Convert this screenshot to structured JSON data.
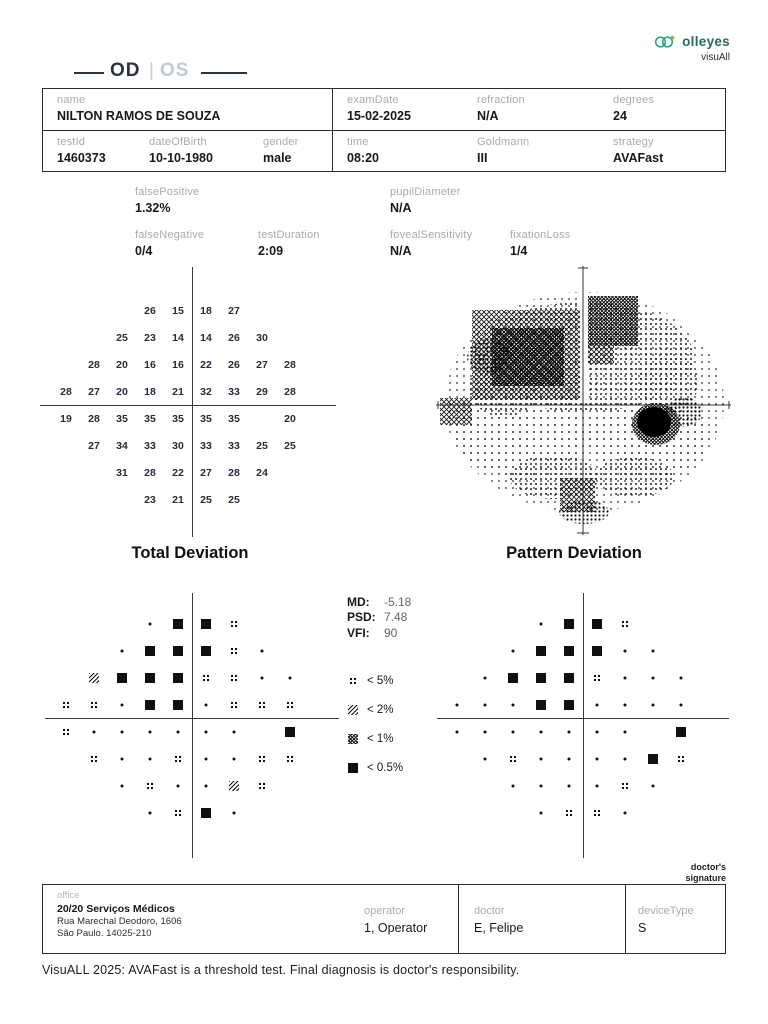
{
  "logo": {
    "brand": "olleyes",
    "product": "visuAll"
  },
  "header": {
    "od": "OD",
    "sep": "|",
    "os": "OS"
  },
  "patient": {
    "name_label": "name",
    "name": "NILTON RAMOS DE SOUZA",
    "exam_date_label": "examDate",
    "exam_date": "15-02-2025",
    "refraction_label": "refraction",
    "refraction": "N/A",
    "degrees_label": "degrees",
    "degrees": "24",
    "test_id_label": "testId",
    "test_id": "1460373",
    "dob_label": "dateOfBirth",
    "dob": "10-10-1980",
    "gender_label": "gender",
    "gender": "male",
    "time_label": "time",
    "time": "08:20",
    "goldmann_label": "Goldmann",
    "goldmann": "III",
    "strategy_label": "strategy",
    "strategy": "AVAFast"
  },
  "metrics": {
    "false_positive_label": "falsePositive",
    "false_positive": "1.32%",
    "pupil_diameter_label": "pupilDiameter",
    "pupil_diameter": "N/A",
    "false_negative_label": "falseNegative",
    "false_negative": "0/4",
    "test_duration_label": "testDuration",
    "test_duration": "2:09",
    "foveal_sensitivity_label": "fovealSensitivity",
    "foveal_sensitivity": "N/A",
    "fixation_loss_label": "fixationLoss",
    "fixation_loss": "1/4"
  },
  "sections": {
    "total_deviation": "Total Deviation",
    "pattern_deviation": "Pattern Deviation"
  },
  "indices": {
    "md_label": "MD:",
    "md": "-5.18",
    "psd_label": "PSD:",
    "psd": "7.48",
    "vfi_label": "VFI:",
    "vfi": "90"
  },
  "legend": [
    {
      "key": "q",
      "label": "< 5%"
    },
    {
      "key": "h2",
      "label": "< 2%"
    },
    {
      "key": "h1",
      "label": "< 1%"
    },
    {
      "key": "b",
      "label": "< 0.5%"
    }
  ],
  "sensitivity_grid": {
    "rows": [
      {
        "y": 21,
        "cells": [
          {
            "x": -9,
            "v": 26
          },
          {
            "x": -3,
            "v": 15
          },
          {
            "x": 3,
            "v": 18
          },
          {
            "x": 9,
            "v": 27
          }
        ]
      },
      {
        "y": 15,
        "cells": [
          {
            "x": -15,
            "v": 25
          },
          {
            "x": -9,
            "v": 23
          },
          {
            "x": -3,
            "v": 14
          },
          {
            "x": 3,
            "v": 14
          },
          {
            "x": 9,
            "v": 26
          },
          {
            "x": 15,
            "v": 30
          }
        ]
      },
      {
        "y": 9,
        "cells": [
          {
            "x": -21,
            "v": 28
          },
          {
            "x": -15,
            "v": 20
          },
          {
            "x": -9,
            "v": 16
          },
          {
            "x": -3,
            "v": 16
          },
          {
            "x": 3,
            "v": 22
          },
          {
            "x": 9,
            "v": 26
          },
          {
            "x": 15,
            "v": 27
          },
          {
            "x": 21,
            "v": 28
          }
        ]
      },
      {
        "y": 3,
        "cells": [
          {
            "x": -27,
            "v": 28
          },
          {
            "x": -21,
            "v": 27
          },
          {
            "x": -15,
            "v": 20
          },
          {
            "x": -9,
            "v": 18
          },
          {
            "x": -3,
            "v": 21
          },
          {
            "x": 3,
            "v": 32
          },
          {
            "x": 9,
            "v": 33
          },
          {
            "x": 15,
            "v": 29
          },
          {
            "x": 21,
            "v": 28
          }
        ]
      },
      {
        "y": -3,
        "cells": [
          {
            "x": -27,
            "v": 19
          },
          {
            "x": -21,
            "v": 28
          },
          {
            "x": -15,
            "v": 35
          },
          {
            "x": -9,
            "v": 35
          },
          {
            "x": -3,
            "v": 35
          },
          {
            "x": 3,
            "v": 35
          },
          {
            "x": 9,
            "v": 35
          },
          {
            "x": 21,
            "v": 20
          }
        ]
      },
      {
        "y": -9,
        "cells": [
          {
            "x": -21,
            "v": 27
          },
          {
            "x": -15,
            "v": 34
          },
          {
            "x": -9,
            "v": 33
          },
          {
            "x": -3,
            "v": 30
          },
          {
            "x": 3,
            "v": 33
          },
          {
            "x": 9,
            "v": 33
          },
          {
            "x": 15,
            "v": 25
          },
          {
            "x": 21,
            "v": 25
          }
        ]
      },
      {
        "y": -15,
        "cells": [
          {
            "x": -15,
            "v": 31
          },
          {
            "x": -9,
            "v": 28
          },
          {
            "x": -3,
            "v": 22
          },
          {
            "x": 3,
            "v": 27
          },
          {
            "x": 9,
            "v": 28
          },
          {
            "x": 15,
            "v": 24
          }
        ]
      },
      {
        "y": -21,
        "cells": [
          {
            "x": -9,
            "v": 23
          },
          {
            "x": -3,
            "v": 21
          },
          {
            "x": 3,
            "v": 25
          },
          {
            "x": 9,
            "v": 25
          }
        ]
      }
    ]
  },
  "total_deviation_grid": {
    "rows": [
      {
        "y": 21,
        "cells": [
          {
            "x": -9,
            "s": "dot"
          },
          {
            "x": -3,
            "s": "b"
          },
          {
            "x": 3,
            "s": "b"
          },
          {
            "x": 9,
            "s": "q"
          }
        ]
      },
      {
        "y": 15,
        "cells": [
          {
            "x": -15,
            "s": "dot"
          },
          {
            "x": -9,
            "s": "b"
          },
          {
            "x": -3,
            "s": "b"
          },
          {
            "x": 3,
            "s": "b"
          },
          {
            "x": 9,
            "s": "q"
          },
          {
            "x": 15,
            "s": "dot"
          }
        ]
      },
      {
        "y": 9,
        "cells": [
          {
            "x": -21,
            "s": "h2"
          },
          {
            "x": -15,
            "s": "b"
          },
          {
            "x": -9,
            "s": "b"
          },
          {
            "x": -3,
            "s": "b"
          },
          {
            "x": 3,
            "s": "q"
          },
          {
            "x": 9,
            "s": "q"
          },
          {
            "x": 15,
            "s": "dot"
          },
          {
            "x": 21,
            "s": "dot"
          }
        ]
      },
      {
        "y": 3,
        "cells": [
          {
            "x": -27,
            "s": "q"
          },
          {
            "x": -21,
            "s": "q"
          },
          {
            "x": -15,
            "s": "dot"
          },
          {
            "x": -9,
            "s": "b"
          },
          {
            "x": -3,
            "s": "b"
          },
          {
            "x": 3,
            "s": "dot"
          },
          {
            "x": 9,
            "s": "q"
          },
          {
            "x": 15,
            "s": "q"
          },
          {
            "x": 21,
            "s": "q"
          }
        ]
      },
      {
        "y": -3,
        "cells": [
          {
            "x": -27,
            "s": "q"
          },
          {
            "x": -21,
            "s": "dot"
          },
          {
            "x": -15,
            "s": "dot"
          },
          {
            "x": -9,
            "s": "dot"
          },
          {
            "x": -3,
            "s": "dot"
          },
          {
            "x": 3,
            "s": "dot"
          },
          {
            "x": 9,
            "s": "dot"
          },
          {
            "x": 21,
            "s": "b"
          }
        ]
      },
      {
        "y": -9,
        "cells": [
          {
            "x": -21,
            "s": "q"
          },
          {
            "x": -15,
            "s": "dot"
          },
          {
            "x": -9,
            "s": "dot"
          },
          {
            "x": -3,
            "s": "q"
          },
          {
            "x": 3,
            "s": "dot"
          },
          {
            "x": 9,
            "s": "dot"
          },
          {
            "x": 15,
            "s": "q"
          },
          {
            "x": 21,
            "s": "q"
          }
        ]
      },
      {
        "y": -15,
        "cells": [
          {
            "x": -15,
            "s": "dot"
          },
          {
            "x": -9,
            "s": "q"
          },
          {
            "x": -3,
            "s": "dot"
          },
          {
            "x": 3,
            "s": "dot"
          },
          {
            "x": 9,
            "s": "h2"
          },
          {
            "x": 15,
            "s": "q"
          }
        ]
      },
      {
        "y": -21,
        "cells": [
          {
            "x": -9,
            "s": "dot"
          },
          {
            "x": -3,
            "s": "q"
          },
          {
            "x": 3,
            "s": "b"
          },
          {
            "x": 9,
            "s": "dot"
          }
        ]
      }
    ]
  },
  "pattern_deviation_grid": {
    "rows": [
      {
        "y": 21,
        "cells": [
          {
            "x": -9,
            "s": "dot"
          },
          {
            "x": -3,
            "s": "b"
          },
          {
            "x": 3,
            "s": "b"
          },
          {
            "x": 9,
            "s": "q"
          }
        ]
      },
      {
        "y": 15,
        "cells": [
          {
            "x": -15,
            "s": "dot"
          },
          {
            "x": -9,
            "s": "b"
          },
          {
            "x": -3,
            "s": "b"
          },
          {
            "x": 3,
            "s": "b"
          },
          {
            "x": 9,
            "s": "dot"
          },
          {
            "x": 15,
            "s": "dot"
          }
        ]
      },
      {
        "y": 9,
        "cells": [
          {
            "x": -21,
            "s": "dot"
          },
          {
            "x": -15,
            "s": "b"
          },
          {
            "x": -9,
            "s": "b"
          },
          {
            "x": -3,
            "s": "b"
          },
          {
            "x": 3,
            "s": "q"
          },
          {
            "x": 9,
            "s": "dot"
          },
          {
            "x": 15,
            "s": "dot"
          },
          {
            "x": 21,
            "s": "dot"
          }
        ]
      },
      {
        "y": 3,
        "cells": [
          {
            "x": -27,
            "s": "dot"
          },
          {
            "x": -21,
            "s": "dot"
          },
          {
            "x": -15,
            "s": "dot"
          },
          {
            "x": -9,
            "s": "b"
          },
          {
            "x": -3,
            "s": "b"
          },
          {
            "x": 3,
            "s": "dot"
          },
          {
            "x": 9,
            "s": "dot"
          },
          {
            "x": 15,
            "s": "dot"
          },
          {
            "x": 21,
            "s": "dot"
          }
        ]
      },
      {
        "y": -3,
        "cells": [
          {
            "x": -27,
            "s": "dot"
          },
          {
            "x": -21,
            "s": "dot"
          },
          {
            "x": -15,
            "s": "dot"
          },
          {
            "x": -9,
            "s": "dot"
          },
          {
            "x": -3,
            "s": "dot"
          },
          {
            "x": 3,
            "s": "dot"
          },
          {
            "x": 9,
            "s": "dot"
          },
          {
            "x": 21,
            "s": "b"
          }
        ]
      },
      {
        "y": -9,
        "cells": [
          {
            "x": -21,
            "s": "dot"
          },
          {
            "x": -15,
            "s": "q"
          },
          {
            "x": -9,
            "s": "dot"
          },
          {
            "x": -3,
            "s": "dot"
          },
          {
            "x": 3,
            "s": "dot"
          },
          {
            "x": 9,
            "s": "dot"
          },
          {
            "x": 15,
            "s": "b"
          },
          {
            "x": 21,
            "s": "q"
          }
        ]
      },
      {
        "y": -15,
        "cells": [
          {
            "x": -15,
            "s": "dot"
          },
          {
            "x": -9,
            "s": "dot"
          },
          {
            "x": -3,
            "s": "dot"
          },
          {
            "x": 3,
            "s": "dot"
          },
          {
            "x": 9,
            "s": "q"
          },
          {
            "x": 15,
            "s": "dot"
          }
        ]
      },
      {
        "y": -21,
        "cells": [
          {
            "x": -9,
            "s": "dot"
          },
          {
            "x": -3,
            "s": "q"
          },
          {
            "x": 3,
            "s": "q"
          },
          {
            "x": 9,
            "s": "dot"
          }
        ]
      }
    ]
  },
  "footer_box": {
    "office_label": "office",
    "office_name": "20/20 Serviços Médicos",
    "office_address1": "Rua Marechal Deodoro, 1606",
    "office_address2": "São Paulo. 14025-210",
    "operator_label": "operator",
    "operator": "1, Operator",
    "doctor_label": "doctor",
    "doctor": "E, Felipe",
    "device_type_label": "deviceType",
    "device_type": "S",
    "signature_line1": "doctor's",
    "signature_line2": "signature"
  },
  "footer_note": "VisuALL 2025: AVAFast is a threshold test. Final diagnosis is doctor's responsibility."
}
